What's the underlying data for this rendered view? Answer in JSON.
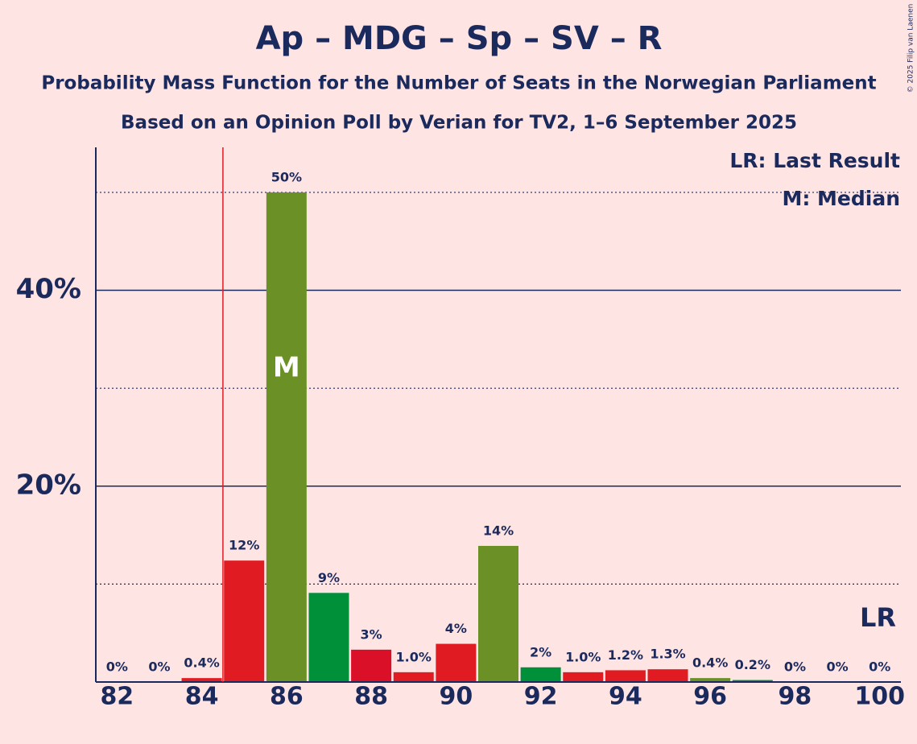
{
  "chart_data": {
    "type": "bar",
    "title": "Ap – MDG – Sp – SV – R",
    "subtitle": "Probability Mass Function for the Number of Seats in the Norwegian Parliament",
    "subtitle2": "Based on an Opinion Poll by Verian for TV2, 1–6 September 2025",
    "x": [
      82,
      83,
      84,
      85,
      86,
      87,
      88,
      89,
      90,
      91,
      92,
      93,
      94,
      95,
      96,
      97,
      98,
      99,
      100
    ],
    "values": [
      0,
      0,
      0.4,
      12.4,
      50,
      9.1,
      3.3,
      1.0,
      3.9,
      13.9,
      1.5,
      1.0,
      1.2,
      1.3,
      0.4,
      0.2,
      0,
      0,
      0
    ],
    "value_labels": [
      "0%",
      "0%",
      "0.4%",
      "12%",
      "50%",
      "9%",
      "3%",
      "1.0%",
      "4%",
      "14%",
      "2%",
      "1.0%",
      "1.2%",
      "1.3%",
      "0.4%",
      "0.2%",
      "0%",
      "0%",
      "0%"
    ],
    "colors": [
      "#e01b22",
      "#e01b22",
      "#e01b22",
      "#e01b22",
      "#6b9126",
      "#00903a",
      "#d91028",
      "#e01b22",
      "#e01b22",
      "#6b9126",
      "#00903a",
      "#e01b22",
      "#e01b22",
      "#e01b22",
      "#6b9126",
      "#00903a",
      "#e01b22",
      "#e01b22",
      "#e01b22"
    ],
    "xlim": [
      81.5,
      100.5
    ],
    "xticks": [
      82,
      84,
      86,
      88,
      90,
      92,
      94,
      96,
      98,
      100
    ],
    "ylim": [
      0,
      54.6
    ],
    "yticks": [
      {
        "value": 20,
        "label": "20%"
      },
      {
        "value": 40,
        "label": "40%"
      }
    ],
    "minor_yticks": [
      10,
      30,
      50
    ],
    "grid": true,
    "last_result": 84.5,
    "last_result_label": "LR",
    "median": 86,
    "median_label": "M",
    "legend": [
      "LR: Last Result",
      "M: Median"
    ],
    "legend_position": "upper right"
  },
  "credit": "© 2025 Filip van Laenen"
}
